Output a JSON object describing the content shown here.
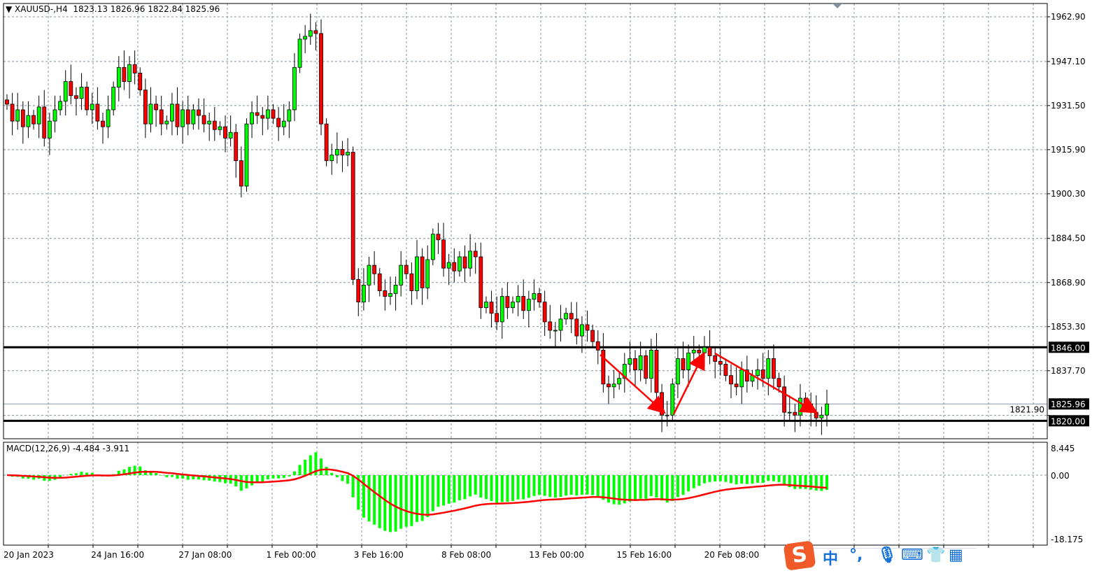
{
  "header": {
    "symbol": "XAUUSD-,H4",
    "ohlc": "1823.13 1826.96 1822.84 1825.96"
  },
  "macd": {
    "label": "MACD(12,26,9) -4.484 -3.911",
    "params": [
      12,
      26,
      9
    ],
    "main": -4.484,
    "signal": -3.911,
    "axis_labels": [
      "8.445",
      "0.00",
      "-18.175"
    ],
    "hist_color": "#00ff00",
    "signal_color": "#ff0000"
  },
  "colors": {
    "bull": "#00ff00",
    "bear": "#ff0000",
    "grid": "#8090a0",
    "hline": "#000000",
    "arrow": "#ff0000"
  },
  "ime_toolbar": {
    "items": [
      "sogou-logo-icon",
      "中",
      "°,",
      "microphone-icon",
      "keyboard-icon",
      "skin-icon",
      "toolbox-icon"
    ]
  },
  "chart_data": {
    "type": "candlestick",
    "symbol": "XAUUSD-",
    "timeframe": "H4",
    "ylim": [
      1816,
      1966
    ],
    "y_ticks": [
      "1962.90",
      "1947.10",
      "1931.50",
      "1915.90",
      "1900.30",
      "1884.50",
      "1868.90",
      "1853.30",
      "1837.70",
      "1821.90"
    ],
    "x_ticks": [
      "20 Jan 2023",
      "24 Jan 16:00",
      "27 Jan 08:00",
      "1 Feb 00:00",
      "3 Feb 16:00",
      "8 Feb 08:00",
      "13 Feb 00:00",
      "15 Feb 16:00",
      "20 Feb 08:00"
    ],
    "horizontal_lines": [
      {
        "price": 1846.0,
        "label": "1846.00"
      },
      {
        "price": 1820.0,
        "label": "1820.00"
      }
    ],
    "current_price": {
      "price": 1825.96,
      "label": "1825.96"
    },
    "closes": [
      1932,
      1926,
      1930,
      1924,
      1928,
      1925,
      1931,
      1920,
      1926,
      1930,
      1933,
      1940,
      1935,
      1934,
      1938,
      1930,
      1932,
      1926,
      1924,
      1930,
      1938,
      1945,
      1940,
      1946,
      1943,
      1937,
      1925,
      1932,
      1930,
      1925,
      1926,
      1932,
      1924,
      1930,
      1925,
      1930,
      1928,
      1925,
      1926,
      1923,
      1924,
      1920,
      1922,
      1912,
      1903,
      1925,
      1929,
      1928,
      1927,
      1930,
      1927,
      1924,
      1926,
      1930,
      1945,
      1955,
      1956,
      1958,
      1957,
      1925,
      1912,
      1914,
      1916,
      1914,
      1915,
      1870,
      1862,
      1868,
      1875,
      1872,
      1866,
      1864,
      1865,
      1868,
      1875,
      1872,
      1866,
      1878,
      1867,
      1877,
      1886,
      1884,
      1874,
      1876,
      1873,
      1878,
      1874,
      1880,
      1878,
      1860,
      1862,
      1858,
      1855,
      1864,
      1860,
      1862,
      1864,
      1859,
      1863,
      1865,
      1862,
      1855,
      1852,
      1852,
      1856,
      1858,
      1856,
      1850,
      1854,
      1852,
      1848,
      1845,
      1833,
      1832,
      1833,
      1835,
      1840,
      1842,
      1838,
      1843,
      1835,
      1845,
      1830,
      1822,
      1822,
      1833,
      1842,
      1838,
      1844,
      1845,
      1844,
      1846,
      1843,
      1841,
      1840,
      1836,
      1833,
      1832,
      1838,
      1834,
      1836,
      1838,
      1835,
      1842,
      1835,
      1832,
      1823,
      1823,
      1822,
      1828,
      1826,
      1823,
      1821,
      1822,
      1825.96
    ]
  }
}
